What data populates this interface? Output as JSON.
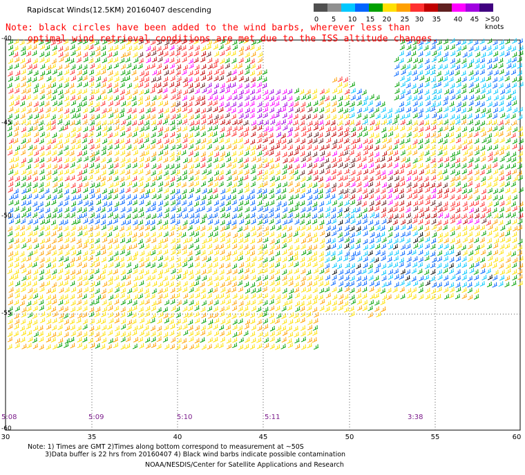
{
  "title": "Rapidscat Winds(12.5KM) 20160407 descending",
  "note_line1": "Note: black circles have been added to the wind barbs, wherever less than",
  "note_line2": "optimal wind retrieval conditions are met due to the ISS altitude changes.",
  "legend": {
    "labels": [
      "0",
      "5",
      "10",
      "15",
      "20",
      "25",
      "30",
      "35",
      "40",
      "45",
      ">50 knots"
    ],
    "colors": [
      "#505050",
      "#909090",
      "#00c8ff",
      "#0064ff",
      "#00a000",
      "#ffe000",
      "#ffa000",
      "#ff3030",
      "#c00000",
      "#602020",
      "#ff00ff",
      "#a000e0",
      "#400080"
    ]
  },
  "latitudes": [
    "-40",
    "-45",
    "-50",
    "-55",
    "-60"
  ],
  "longitudes": [
    "30",
    "35",
    "40",
    "45",
    "50",
    "55",
    "60"
  ],
  "times": [
    "5:08",
    "5:09",
    "5:10",
    "5:11",
    "3:38"
  ],
  "footer": {
    "line1": "Note: 1) Times are GMT 2)Times along bottom correspond to measurement at ~50S",
    "line2": "3)Data buffer is 22 hrs from 20160407 4) Black wind barbs indicate possible contamination",
    "line3": "NOAA/NESDIS/Center for Satellite Applications and Research"
  }
}
